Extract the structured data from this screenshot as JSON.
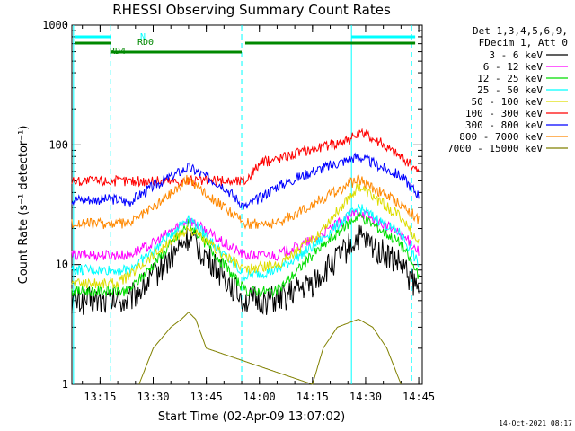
{
  "chart_data": {
    "type": "line",
    "title": "RHESSI Observing Summary Count Rates",
    "xlabel": "Start Time (02-Apr-09 13:07:02)",
    "ylabel": "Count Rate (s⁻¹ detector⁻¹)",
    "y_scale": "log",
    "ylim": [
      1,
      1000
    ],
    "xlim": [
      "13:07:02",
      "14:46"
    ],
    "x_ticks": [
      "13:15",
      "13:30",
      "13:45",
      "14:00",
      "14:15",
      "14:30",
      "14:45"
    ],
    "y_ticks": [
      "1",
      "10",
      "100",
      "1000"
    ],
    "grid": false,
    "legend_position": "right",
    "legend_header": [
      "Det 1,3,4,5,6,9,",
      "FDecim 1, Att 0"
    ],
    "series": [
      {
        "name": "3 - 6 keV",
        "color": "#000000",
        "x": [
          "13:07",
          "13:20",
          "13:23",
          "13:30",
          "13:40",
          "13:50",
          "13:56",
          "14:05",
          "14:15",
          "14:28",
          "14:40",
          "14:45"
        ],
        "values": [
          5,
          5,
          5,
          8,
          17,
          8,
          5,
          5,
          7,
          17,
          10,
          6
        ]
      },
      {
        "name": "6 - 12 keV",
        "color": "#ff00ff",
        "x": [
          "13:07",
          "13:20",
          "13:23",
          "13:30",
          "13:40",
          "13:50",
          "13:56",
          "14:05",
          "14:15",
          "14:28",
          "14:40",
          "14:45"
        ],
        "values": [
          12,
          12,
          12,
          15,
          24,
          15,
          12,
          12,
          16,
          28,
          18,
          13
        ]
      },
      {
        "name": "12 - 25 keV",
        "color": "#00dd00",
        "x": [
          "13:07",
          "13:20",
          "13:23",
          "13:30",
          "13:40",
          "13:50",
          "13:56",
          "14:05",
          "14:15",
          "14:28",
          "14:40",
          "14:45"
        ],
        "values": [
          6,
          6,
          6,
          10,
          22,
          10,
          6,
          6,
          12,
          26,
          15,
          8
        ]
      },
      {
        "name": "25 - 50 keV",
        "color": "#00ffff",
        "x": [
          "13:07",
          "13:20",
          "13:23",
          "13:30",
          "13:40",
          "13:50",
          "13:56",
          "14:05",
          "14:15",
          "14:28",
          "14:40",
          "14:45"
        ],
        "values": [
          9,
          9,
          9,
          13,
          25,
          12,
          8,
          9,
          14,
          30,
          18,
          10
        ]
      },
      {
        "name": "50 - 100 keV",
        "color": "#dddd00",
        "x": [
          "13:07",
          "13:20",
          "13:23",
          "13:30",
          "13:40",
          "13:50",
          "13:56",
          "14:05",
          "14:15",
          "14:28",
          "14:40",
          "14:45"
        ],
        "values": [
          7,
          7,
          8,
          12,
          20,
          12,
          9,
          10,
          16,
          45,
          25,
          15
        ]
      },
      {
        "name": "100 - 300 keV",
        "color": "#ff0000",
        "x": [
          "13:07",
          "13:20",
          "13:23",
          "13:56",
          "14:00",
          "14:10",
          "14:20",
          "14:30",
          "14:40",
          "14:45"
        ],
        "values": [
          50,
          50,
          50,
          50,
          70,
          85,
          100,
          125,
          80,
          60
        ]
      },
      {
        "name": "300 - 800 keV",
        "color": "#0000ff",
        "x": [
          "13:07",
          "13:20",
          "13:23",
          "13:30",
          "13:40",
          "13:50",
          "13:56",
          "14:05",
          "14:15",
          "14:28",
          "14:40",
          "14:45"
        ],
        "values": [
          35,
          35,
          33,
          45,
          65,
          45,
          30,
          45,
          60,
          80,
          55,
          38
        ]
      },
      {
        "name": "800 - 7000 keV",
        "color": "#ff8800",
        "x": [
          "13:07",
          "13:20",
          "13:23",
          "13:30",
          "13:40",
          "13:50",
          "13:56",
          "14:05",
          "14:15",
          "14:28",
          "14:40",
          "14:45"
        ],
        "values": [
          22,
          22,
          22,
          30,
          52,
          30,
          22,
          22,
          32,
          52,
          32,
          24
        ]
      },
      {
        "name": "7000 - 15000 keV",
        "color": "#808000",
        "x": [
          "13:26",
          "13:30",
          "13:35",
          "13:38",
          "13:40",
          "13:42",
          "13:45",
          "14:15",
          "14:18",
          "14:22",
          "14:28",
          "14:32",
          "14:36",
          "14:40"
        ],
        "values": [
          1,
          2,
          3,
          3.5,
          4,
          3.5,
          2,
          1,
          2,
          3,
          3.5,
          3,
          2,
          1
        ]
      }
    ],
    "annotations": [
      {
        "label": "N",
        "color": "#00ffff"
      },
      {
        "label": "RD0",
        "color": "#008800"
      },
      {
        "label": "RD4",
        "color": "#008800"
      }
    ]
  },
  "footer_timestamp": "14-Oct-2021 08:17"
}
